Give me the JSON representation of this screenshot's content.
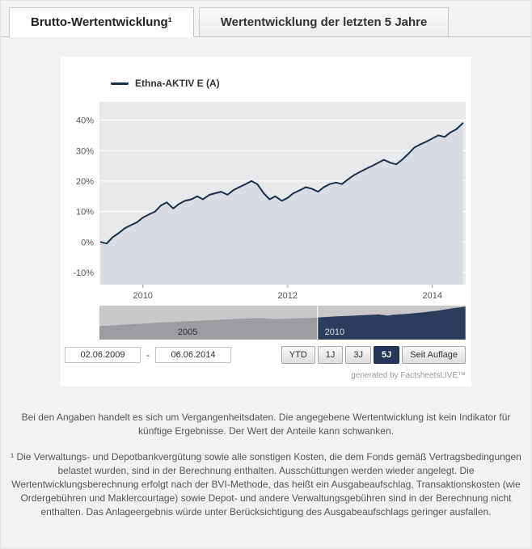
{
  "tabs": [
    {
      "label": "Brutto-Wertentwicklung¹"
    },
    {
      "label": "Wertentwicklung der letzten 5 Jahre"
    }
  ],
  "legend": {
    "series_label": "Ethna-AKTIV E (A)"
  },
  "range_selector": {
    "date_from": "02.06.2009",
    "date_separator": "-",
    "date_to": "06.06.2014",
    "buttons": [
      {
        "label": "YTD",
        "active": false
      },
      {
        "label": "1J",
        "active": false
      },
      {
        "label": "3J",
        "active": false
      },
      {
        "label": "5J",
        "active": true
      },
      {
        "label": "Seit Auflage",
        "active": false
      }
    ]
  },
  "credit": "generated by FactsheetsLIVE™",
  "chart_data": {
    "type": "area",
    "title": "",
    "xlabel": "",
    "ylabel": "",
    "series": [
      {
        "name": "Ethna-AKTIV E (A)",
        "x": [
          2009.42,
          2009.5,
          2009.58,
          2009.67,
          2009.75,
          2009.83,
          2009.92,
          2010.0,
          2010.08,
          2010.17,
          2010.25,
          2010.33,
          2010.42,
          2010.5,
          2010.58,
          2010.67,
          2010.75,
          2010.83,
          2010.92,
          2011.0,
          2011.08,
          2011.17,
          2011.25,
          2011.33,
          2011.42,
          2011.5,
          2011.58,
          2011.67,
          2011.75,
          2011.83,
          2011.92,
          2012.0,
          2012.08,
          2012.17,
          2012.25,
          2012.33,
          2012.42,
          2012.5,
          2012.58,
          2012.67,
          2012.75,
          2012.83,
          2012.92,
          2013.0,
          2013.08,
          2013.17,
          2013.25,
          2013.33,
          2013.42,
          2013.5,
          2013.58,
          2013.67,
          2013.75,
          2013.83,
          2013.92,
          2014.0,
          2014.08,
          2014.17,
          2014.25,
          2014.33,
          2014.42
        ],
        "values": [
          0,
          -0.5,
          1.5,
          3,
          4.5,
          5.5,
          6.5,
          8,
          9,
          10,
          12,
          13,
          11,
          12.5,
          13.5,
          14,
          15,
          14,
          15.5,
          16,
          16.5,
          15.5,
          17,
          18,
          19,
          20,
          19,
          16,
          14,
          15,
          13.5,
          14.5,
          16,
          17,
          18,
          17.5,
          16.5,
          18,
          19,
          19.5,
          19,
          20.5,
          22,
          23,
          24,
          25,
          26,
          27,
          26,
          25.5,
          27,
          29,
          31,
          32,
          33,
          34,
          35,
          34.5,
          36,
          37,
          39
        ]
      }
    ],
    "xlim": [
      2009.4,
      2014.46
    ],
    "ylim": [
      -14,
      46
    ],
    "x_ticks": [
      2010,
      2012,
      2014
    ],
    "y_ticks": [
      -10,
      0,
      10,
      20,
      30,
      40
    ],
    "y_tick_labels": [
      "-10%",
      "0%",
      "10%",
      "20%",
      "30%",
      "40%"
    ],
    "grid": true,
    "legend_position": "top-left",
    "colors": {
      "line": "#16304f",
      "area": "#d9dce2",
      "plot_bg": "#e8e9eb",
      "grid": "#ffffff",
      "axis_label": "#555555"
    },
    "navigator": {
      "xlim": [
        2002.0,
        2014.46
      ],
      "selected_from": 2009.42,
      "x_ticks": [
        2005,
        2010
      ],
      "x": [
        2002,
        2002.5,
        2003,
        2003.5,
        2004,
        2004.5,
        2005,
        2005.5,
        2006,
        2006.5,
        2007,
        2007.5,
        2008,
        2008.5,
        2009,
        2009.42,
        2010,
        2010.5,
        2011,
        2011.5,
        2011.8,
        2012,
        2012.5,
        2013,
        2013.5,
        2014,
        2014.45
      ],
      "values_relative_height": [
        0.4,
        0.42,
        0.45,
        0.47,
        0.5,
        0.52,
        0.54,
        0.56,
        0.58,
        0.6,
        0.62,
        0.63,
        0.6,
        0.62,
        0.63,
        0.65,
        0.68,
        0.7,
        0.72,
        0.74,
        0.71,
        0.73,
        0.76,
        0.8,
        0.85,
        0.92,
        0.97
      ],
      "colors": {
        "bg": "#c8c8c8",
        "area_unselected": "#9c9da0",
        "area_selected": "#2b3c5e",
        "handle": "#ffffff",
        "tick_label_unselected": "#333333",
        "tick_label_selected": "#e0e0e0"
      }
    }
  },
  "disclaimer": {
    "p1": "Bei den Angaben handelt es sich um Vergangenheitsdaten. Die angegebene Wertentwicklung ist kein Indikator für künftige Ergebnisse. Der Wert der Anteile kann schwanken.",
    "p2": "¹ Die Verwaltungs- und Depotbankvergütung sowie alle sonstigen Kosten, die dem Fonds gemäß Vertragsbedingungen belastet wurden, sind in der Berechnung enthalten. Ausschüttungen werden wieder angelegt. Die Wertentwicklungsberechnung erfolgt nach der BVI-Methode, das heißt ein Ausgabeaufschlag, Transaktionskosten (wie Ordergebühren und Maklercourtage) sowie Depot- und andere Verwaltungsgebühren sind in der Berechnung nicht enthalten. Das Anlageergebnis würde unter Berücksichtigung des Ausgabeaufschlags geringer ausfallen."
  }
}
